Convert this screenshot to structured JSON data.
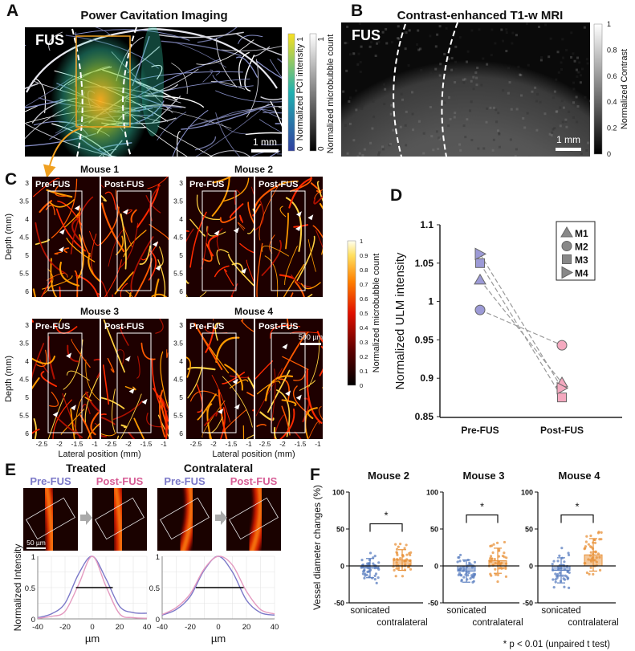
{
  "panel_a": {
    "label": "A",
    "title": "Power Cavitation Imaging",
    "fus_label": "FUS",
    "scale_bar": "1 mm",
    "colorbar_pci": {
      "label": "Normalized PCI intensity",
      "min": "0",
      "max": "1",
      "colors": [
        "#3040a0",
        "#20b0b0",
        "#f8e020"
      ]
    },
    "colorbar_count": {
      "label": "Normalized microbubble count",
      "min": "0",
      "max": "1",
      "colors": [
        "#000000",
        "#ffffff"
      ]
    },
    "roi_color": "#f0a020"
  },
  "panel_b": {
    "label": "B",
    "title": "Contrast-enhanced T1-w MRI",
    "fus_label": "FUS",
    "scale_bar": "1 mm",
    "colorbar": {
      "label": "Normalized Contrast",
      "ticks": [
        "0",
        "0.2",
        "0.4",
        "0.6",
        "0.8",
        "1"
      ]
    }
  },
  "panel_c": {
    "label": "C",
    "mice": [
      "Mouse 1",
      "Mouse 2",
      "Mouse 3",
      "Mouse 4"
    ],
    "pre": "Pre-FUS",
    "post": "Post-FUS",
    "ylabel": "Depth (mm)",
    "y_ticks": [
      "3",
      "3.5",
      "4",
      "4.5",
      "5",
      "5.5",
      "6"
    ],
    "xlabel": "Lateral position (mm)",
    "x_ticks": [
      "-2.5",
      "-2",
      "-1.5",
      "-1"
    ],
    "scale_bar": "500 µm",
    "colorbar": {
      "label": "Normalized microbubble count",
      "ticks": [
        "0",
        "0.1",
        "0.2",
        "0.3",
        "0.4",
        "0.5",
        "0.6",
        "0.7",
        "0.8",
        "0.9",
        "1"
      ]
    }
  },
  "panel_d": {
    "label": "D"
  },
  "panel_e": {
    "label": "E",
    "groups": [
      "Treated",
      "Contralateral"
    ],
    "pre": "Pre-FUS",
    "post": "Post-FUS",
    "pre_color": "#7b78c8",
    "post_color": "#d75c95",
    "scale_bar": "50 µm"
  },
  "panel_f": {
    "label": "F",
    "ylabel": "Vessel diameter changes (%)",
    "footnote": "* p < 0.01 (unpaired t test)",
    "sonicated_color": "#5b7fc0",
    "contralateral_color": "#e8923a"
  },
  "chart_data": [
    {
      "id": "D",
      "type": "scatter",
      "ylabel": "Normalized ULM intensity",
      "categories": [
        "Pre-FUS",
        "Post-FUS"
      ],
      "ylim": [
        0.85,
        1.1
      ],
      "y_ticks": [
        "0.85",
        "0.9",
        "0.95",
        "1",
        "1.05",
        "1.1"
      ],
      "legend": "top-right",
      "pre_color": "#9c9ad6",
      "post_color": "#f4a9bf",
      "series": [
        {
          "name": "M1",
          "marker": "triangle",
          "values": [
            1.028,
            0.894
          ]
        },
        {
          "name": "M2",
          "marker": "circle",
          "values": [
            0.989,
            0.943
          ]
        },
        {
          "name": "M3",
          "marker": "square",
          "values": [
            1.05,
            0.875
          ]
        },
        {
          "name": "M4",
          "marker": "triangle-right",
          "values": [
            1.062,
            0.887
          ]
        }
      ]
    },
    {
      "id": "E-treated",
      "type": "line",
      "ylabel": "Normalized Intensity",
      "xlabel": "µm",
      "x": [
        -40,
        -30,
        -20,
        -10,
        0,
        10,
        20,
        30,
        40
      ],
      "x_ticks": [
        "-40",
        "-20",
        "0",
        "20",
        "40"
      ],
      "y_ticks": [
        "0",
        "0.5",
        "1"
      ],
      "xlim": [
        -40,
        40
      ],
      "ylim": [
        0,
        1
      ],
      "fwhm_line": [
        -12,
        15
      ],
      "series": [
        {
          "values": [
            0.02,
            0.08,
            0.25,
            0.72,
            1.0,
            0.64,
            0.2,
            0.1,
            0.09
          ],
          "color": "#7b78c8"
        },
        {
          "values": [
            0.01,
            0.04,
            0.12,
            0.55,
            1.0,
            0.52,
            0.08,
            0.02,
            0.01
          ],
          "color": "#e49ac0"
        }
      ]
    },
    {
      "id": "E-contralateral",
      "type": "line",
      "xlabel": "µm",
      "x": [
        -40,
        -30,
        -20,
        -10,
        0,
        10,
        20,
        30,
        40
      ],
      "x_ticks": [
        "-40",
        "-20",
        "0",
        "20",
        "40"
      ],
      "y_ticks": [
        "0",
        "0.5",
        "1"
      ],
      "xlim": [
        -40,
        40
      ],
      "ylim": [
        0,
        1
      ],
      "fwhm_line": [
        -16,
        18
      ],
      "series": [
        {
          "values": [
            0.06,
            0.15,
            0.36,
            0.78,
            1.0,
            0.75,
            0.3,
            0.1,
            0.06
          ],
          "color": "#7b78c8"
        },
        {
          "values": [
            0.07,
            0.18,
            0.4,
            0.8,
            1.0,
            0.86,
            0.44,
            0.15,
            0.08
          ],
          "color": "#e49ac0"
        }
      ]
    },
    {
      "id": "F-mouse2",
      "type": "bar",
      "title": "Mouse 2",
      "categories": [
        "sonicated",
        "contralateral"
      ],
      "values": [
        -3,
        8
      ],
      "sd": [
        13,
        14
      ],
      "ylim": [
        -50,
        100
      ],
      "y_ticks": [
        "100",
        "50",
        "0",
        "-50"
      ],
      "significance": "*",
      "bracket_y": 57
    },
    {
      "id": "F-mouse3",
      "type": "bar",
      "title": "Mouse 3",
      "categories": [
        "sonicated",
        "contralateral"
      ],
      "values": [
        -7,
        7
      ],
      "sd": [
        15,
        17
      ],
      "ylim": [
        -50,
        100
      ],
      "y_ticks": [
        "100",
        "50",
        "0",
        "-50"
      ],
      "significance": "*",
      "bracket_y": 69
    },
    {
      "id": "F-mouse4",
      "type": "bar",
      "title": "Mouse 4",
      "categories": [
        "sonicated",
        "contralateral"
      ],
      "values": [
        -6,
        15
      ],
      "sd": [
        17,
        22
      ],
      "ylim": [
        -50,
        100
      ],
      "y_ticks": [
        "100",
        "50",
        "0",
        "-50"
      ],
      "significance": "*",
      "bracket_y": 69
    }
  ]
}
